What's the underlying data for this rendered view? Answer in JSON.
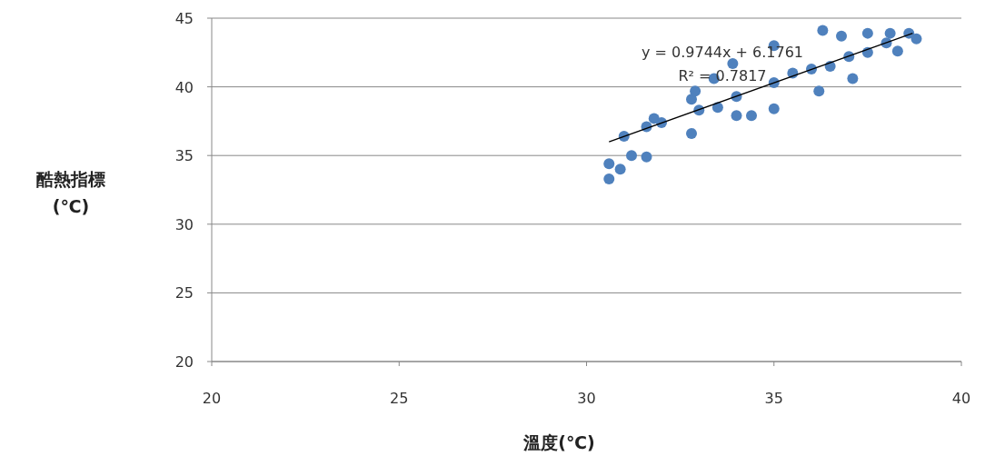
{
  "chart_data": {
    "type": "scatter",
    "xlabel": "溫度(℃)",
    "ylabel": "酷熱指標 (℃)",
    "xlim": [
      20,
      40
    ],
    "xticks": [
      20,
      25,
      30,
      35,
      40
    ],
    "ylim": [
      20,
      45
    ],
    "yticks": [
      20,
      25,
      30,
      35,
      40,
      45
    ],
    "grid": "y",
    "annotations": [
      "y = 0.9744x + 6.1761",
      "R² = 0.7817"
    ],
    "series": [
      {
        "color": "#4f81bd",
        "x": [
          30.6,
          31.6,
          31.8,
          32.8,
          32.9,
          33.4,
          33.9,
          35.0,
          36.3,
          36.8,
          37.5,
          38.1,
          38.6,
          38.8,
          30.6,
          31.6,
          32.8,
          34.0,
          34.4,
          35.0,
          36.2,
          37.1,
          38.3,
          31.0,
          32.0,
          33.0,
          34.0,
          35.0,
          36.0,
          37.0,
          38.0,
          30.9,
          31.2,
          33.5,
          35.5,
          36.5,
          37.5
        ],
        "values": [
          34.4,
          37.1,
          37.7,
          39.1,
          39.7,
          40.6,
          41.7,
          43.0,
          44.1,
          43.7,
          43.9,
          43.9,
          43.9,
          43.5,
          33.3,
          34.9,
          36.6,
          37.9,
          37.9,
          38.4,
          39.7,
          40.6,
          42.6,
          36.4,
          37.4,
          38.3,
          39.3,
          40.3,
          41.3,
          42.2,
          43.2,
          34.0,
          35.0,
          38.5,
          41.0,
          41.5,
          42.5
        ]
      },
      {
        "type": "line",
        "color": "#000000",
        "x": [
          30.6,
          38.7
        ],
        "values": [
          36.0,
          43.9
        ]
      }
    ]
  }
}
